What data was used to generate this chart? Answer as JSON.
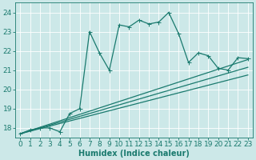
{
  "xlabel": "Humidex (Indice chaleur)",
  "bg_color": "#cce8e8",
  "grid_color": "#ffffff",
  "line_color": "#1a7a6e",
  "xlim": [
    -0.5,
    23.5
  ],
  "ylim": [
    17.5,
    24.5
  ],
  "yticks": [
    18,
    19,
    20,
    21,
    22,
    23,
    24
  ],
  "xticks": [
    0,
    1,
    2,
    3,
    4,
    5,
    6,
    7,
    8,
    9,
    10,
    11,
    12,
    13,
    14,
    15,
    16,
    17,
    18,
    19,
    20,
    21,
    22,
    23
  ],
  "series1_x": [
    0,
    1,
    2,
    3,
    4,
    5,
    6,
    7,
    8,
    9,
    10,
    11,
    12,
    13,
    14,
    15,
    16,
    17,
    18,
    19,
    20,
    21,
    22,
    23
  ],
  "series1_y": [
    17.7,
    17.9,
    18.0,
    18.0,
    17.8,
    18.75,
    19.0,
    23.0,
    21.9,
    21.0,
    23.35,
    23.25,
    23.6,
    23.4,
    23.5,
    24.0,
    22.9,
    21.4,
    21.9,
    21.75,
    21.1,
    21.0,
    21.65,
    21.6
  ],
  "series2_x": [
    0,
    23
  ],
  "series2_y": [
    17.7,
    21.55
  ],
  "series3_x": [
    0,
    23
  ],
  "series3_y": [
    17.7,
    21.15
  ],
  "series4_x": [
    0,
    23
  ],
  "series4_y": [
    17.7,
    20.75
  ],
  "xlabel_fontsize": 7,
  "tick_fontsize": 6.5,
  "linewidth": 0.9,
  "markersize": 2.0
}
